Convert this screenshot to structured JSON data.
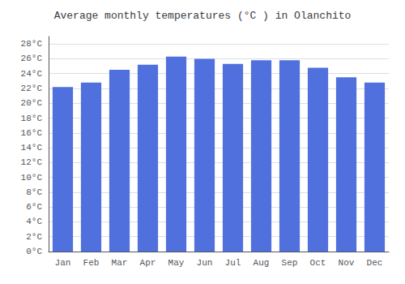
{
  "chart_data": {
    "type": "bar",
    "title": "Average monthly temperatures (°C ) in Olanchito",
    "categories": [
      "Jan",
      "Feb",
      "Mar",
      "Apr",
      "May",
      "Jun",
      "Jul",
      "Aug",
      "Sep",
      "Oct",
      "Nov",
      "Dec"
    ],
    "values": [
      22.2,
      22.8,
      24.5,
      25.2,
      26.3,
      26.0,
      25.3,
      25.8,
      25.8,
      24.8,
      23.5,
      22.8
    ],
    "ylim": [
      0,
      29
    ],
    "yticks": [
      {
        "value": 0,
        "label": "0°C"
      },
      {
        "value": 2,
        "label": "2°C"
      },
      {
        "value": 4,
        "label": "4°C"
      },
      {
        "value": 6,
        "label": "6°C"
      },
      {
        "value": 8,
        "label": "8°C"
      },
      {
        "value": 10,
        "label": "10°C"
      },
      {
        "value": 12,
        "label": "12°C"
      },
      {
        "value": 14,
        "label": "14°C"
      },
      {
        "value": 16,
        "label": "16°C"
      },
      {
        "value": 18,
        "label": "18°C"
      },
      {
        "value": 20,
        "label": "20°C"
      },
      {
        "value": 22,
        "label": "22°C"
      },
      {
        "value": 24,
        "label": "24°C"
      },
      {
        "value": 26,
        "label": "26°C"
      },
      {
        "value": 28,
        "label": "28°C"
      }
    ],
    "grid": true
  }
}
